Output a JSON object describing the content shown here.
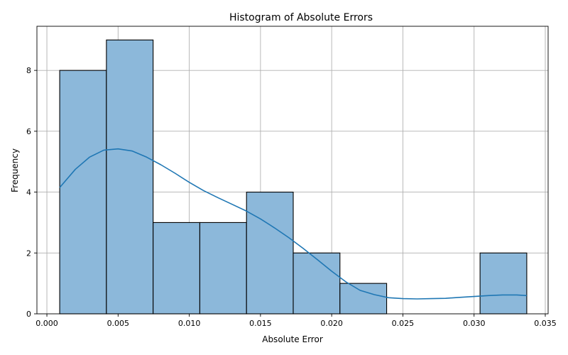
{
  "chart_data": {
    "type": "bar",
    "title": "Histogram of Absolute Errors",
    "xlabel": "Absolute Error",
    "ylabel": "Frequency",
    "xlim": [
      -0.0007,
      0.0352
    ],
    "ylim": [
      0,
      9.45
    ],
    "grid": true,
    "bins": [
      {
        "start": 0.0009,
        "end": 0.00418,
        "count": 8
      },
      {
        "start": 0.00418,
        "end": 0.00746,
        "count": 9
      },
      {
        "start": 0.00746,
        "end": 0.01074,
        "count": 3
      },
      {
        "start": 0.01074,
        "end": 0.01402,
        "count": 3
      },
      {
        "start": 0.01402,
        "end": 0.0173,
        "count": 4
      },
      {
        "start": 0.0173,
        "end": 0.02058,
        "count": 2
      },
      {
        "start": 0.02058,
        "end": 0.02386,
        "count": 1
      },
      {
        "start": 0.02386,
        "end": 0.02714,
        "count": 0
      },
      {
        "start": 0.02714,
        "end": 0.03042,
        "count": 0
      },
      {
        "start": 0.03042,
        "end": 0.0337,
        "count": 2
      }
    ],
    "kde": {
      "x": [
        0.0009,
        0.002,
        0.003,
        0.004,
        0.005,
        0.006,
        0.007,
        0.008,
        0.009,
        0.01,
        0.011,
        0.012,
        0.013,
        0.014,
        0.015,
        0.016,
        0.017,
        0.018,
        0.019,
        0.02,
        0.021,
        0.022,
        0.023,
        0.024,
        0.025,
        0.026,
        0.027,
        0.028,
        0.029,
        0.03,
        0.031,
        0.032,
        0.033,
        0.0337
      ],
      "y": [
        4.15,
        4.75,
        5.15,
        5.38,
        5.42,
        5.35,
        5.15,
        4.9,
        4.62,
        4.32,
        4.05,
        3.82,
        3.6,
        3.38,
        3.12,
        2.82,
        2.5,
        2.15,
        1.78,
        1.4,
        1.05,
        0.77,
        0.63,
        0.53,
        0.5,
        0.49,
        0.5,
        0.51,
        0.54,
        0.57,
        0.6,
        0.62,
        0.62,
        0.6
      ]
    },
    "xticks": [
      {
        "value": 0.0,
        "label": "0.000"
      },
      {
        "value": 0.005,
        "label": "0.005"
      },
      {
        "value": 0.01,
        "label": "0.010"
      },
      {
        "value": 0.015,
        "label": "0.015"
      },
      {
        "value": 0.02,
        "label": "0.020"
      },
      {
        "value": 0.025,
        "label": "0.025"
      },
      {
        "value": 0.03,
        "label": "0.030"
      },
      {
        "value": 0.035,
        "label": "0.035"
      }
    ],
    "yticks": [
      {
        "value": 0,
        "label": "0"
      },
      {
        "value": 2,
        "label": "2"
      },
      {
        "value": 4,
        "label": "4"
      },
      {
        "value": 6,
        "label": "6"
      },
      {
        "value": 8,
        "label": "8"
      }
    ],
    "colors": {
      "bar_fill": "#8cb8da",
      "bar_edge": "#000000",
      "kde_line": "#1f77b4",
      "grid": "#b0b0b0"
    }
  }
}
